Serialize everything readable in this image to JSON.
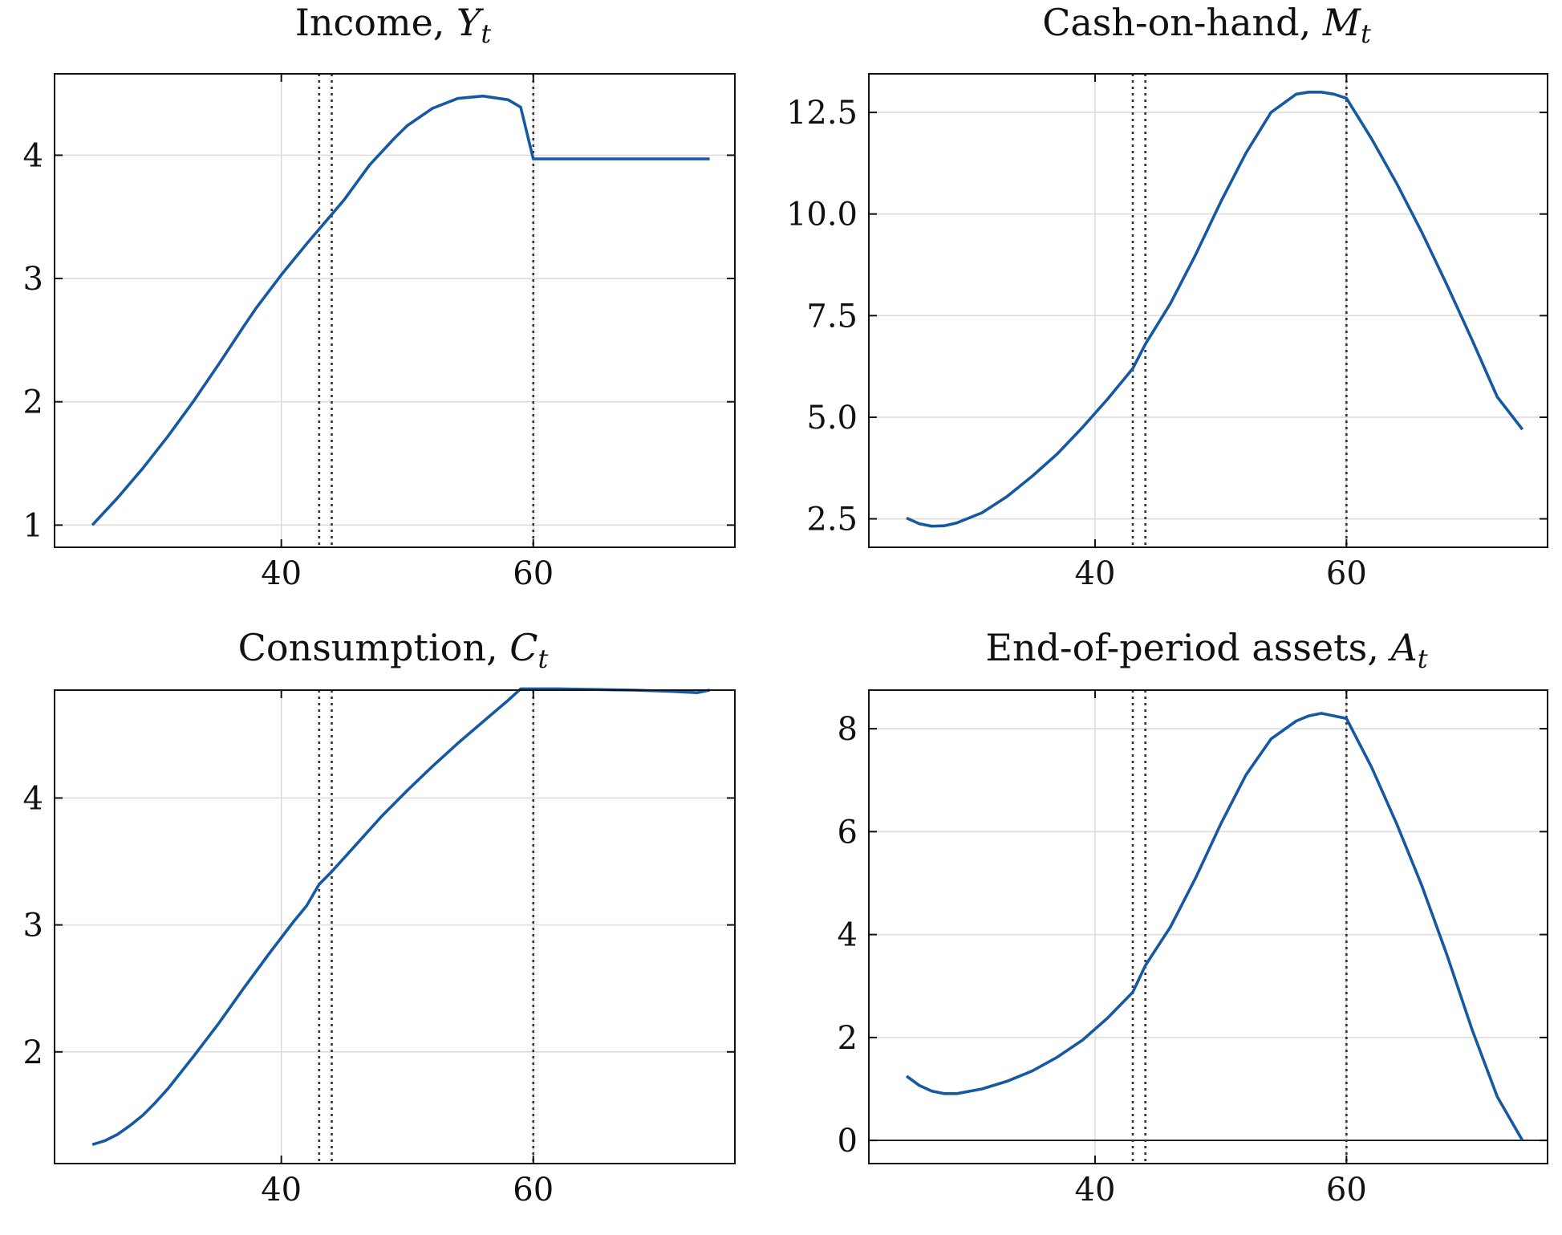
{
  "figure": {
    "line_color": "#1559a3",
    "vline_color": "#333333",
    "grid_color": "#dcdcdc"
  },
  "chart_data": [
    {
      "id": "income",
      "type": "line",
      "title": "Income, ",
      "title_math": "Y",
      "title_sub": "t",
      "xlim": [
        22,
        76
      ],
      "ylim": [
        0.82,
        4.66
      ],
      "xticks": [
        40,
        60
      ],
      "yticks": [
        1,
        2,
        3,
        4
      ],
      "ytick_labels": [
        "1",
        "2",
        "3",
        "4"
      ],
      "vlines": [
        43,
        44,
        60
      ],
      "zero_line": false,
      "series": [
        {
          "x": [
            25,
            27,
            29,
            31,
            33,
            35,
            37,
            38,
            40,
            42,
            44,
            45,
            47,
            49,
            50,
            52,
            54,
            56,
            58,
            59,
            60,
            62,
            65,
            68,
            71,
            74
          ],
          "y": [
            1.0,
            1.22,
            1.46,
            1.72,
            2.0,
            2.3,
            2.61,
            2.76,
            3.03,
            3.28,
            3.52,
            3.64,
            3.92,
            4.14,
            4.24,
            4.38,
            4.46,
            4.48,
            4.45,
            4.39,
            3.97,
            3.97,
            3.97,
            3.97,
            3.97,
            3.97
          ]
        }
      ]
    },
    {
      "id": "cash-on-hand",
      "type": "line",
      "title": "Cash-on-hand, ",
      "title_math": "M",
      "title_sub": "t",
      "xlim": [
        22,
        76
      ],
      "ylim": [
        1.8,
        13.45
      ],
      "xticks": [
        40,
        60
      ],
      "yticks": [
        2.5,
        5.0,
        7.5,
        10.0,
        12.5
      ],
      "ytick_labels": [
        "2.5",
        "5.0",
        "7.5",
        "10.0",
        "12.5"
      ],
      "vlines": [
        43,
        44,
        60
      ],
      "zero_line": false,
      "series": [
        {
          "x": [
            25,
            26,
            27,
            28,
            29,
            31,
            33,
            35,
            37,
            39,
            41,
            43,
            44,
            46,
            48,
            50,
            52,
            54,
            56,
            57,
            58,
            59,
            60,
            62,
            64,
            66,
            68,
            70,
            72,
            74
          ],
          "y": [
            2.52,
            2.38,
            2.32,
            2.33,
            2.4,
            2.65,
            3.05,
            3.55,
            4.1,
            4.75,
            5.45,
            6.2,
            6.8,
            7.8,
            9.0,
            10.3,
            11.5,
            12.5,
            12.95,
            13.0,
            13.0,
            12.95,
            12.85,
            11.85,
            10.75,
            9.55,
            8.25,
            6.9,
            5.5,
            4.7
          ]
        }
      ]
    },
    {
      "id": "consumption",
      "type": "line",
      "title": "Consumption, ",
      "title_math": "C",
      "title_sub": "t",
      "xlim": [
        22,
        76
      ],
      "ylim": [
        1.12,
        4.85
      ],
      "xticks": [
        40,
        60
      ],
      "yticks": [
        2,
        3,
        4
      ],
      "ytick_labels": [
        "2",
        "3",
        "4"
      ],
      "vlines": [
        43,
        44,
        60
      ],
      "zero_line": false,
      "series": [
        {
          "x": [
            25,
            26,
            27,
            28,
            29,
            30,
            31,
            33,
            35,
            37,
            39,
            41,
            42,
            43,
            44,
            46,
            48,
            50,
            52,
            54,
            56,
            58,
            59,
            60,
            62,
            65,
            68,
            71,
            73,
            74
          ],
          "y": [
            1.27,
            1.3,
            1.35,
            1.42,
            1.5,
            1.6,
            1.71,
            1.96,
            2.22,
            2.5,
            2.77,
            3.03,
            3.15,
            3.32,
            3.42,
            3.64,
            3.86,
            4.06,
            4.25,
            4.43,
            4.6,
            4.77,
            4.86,
            4.86,
            4.86,
            4.855,
            4.85,
            4.84,
            4.83,
            4.85
          ]
        }
      ]
    },
    {
      "id": "assets",
      "type": "line",
      "title": "End-of-period assets, ",
      "title_math": "A",
      "title_sub": "t",
      "xlim": [
        22,
        76
      ],
      "ylim": [
        -0.45,
        8.75
      ],
      "xticks": [
        40,
        60
      ],
      "yticks": [
        0,
        2,
        4,
        6,
        8
      ],
      "ytick_labels": [
        "0",
        "2",
        "4",
        "6",
        "8"
      ],
      "vlines": [
        43,
        44,
        60
      ],
      "zero_line": true,
      "series": [
        {
          "x": [
            25,
            26,
            27,
            28,
            29,
            31,
            33,
            35,
            37,
            39,
            41,
            43,
            44,
            46,
            48,
            50,
            52,
            54,
            56,
            57,
            58,
            59,
            60,
            62,
            64,
            66,
            68,
            70,
            72,
            74
          ],
          "y": [
            1.25,
            1.07,
            0.96,
            0.91,
            0.91,
            1.0,
            1.15,
            1.35,
            1.62,
            1.95,
            2.38,
            2.88,
            3.4,
            4.15,
            5.1,
            6.15,
            7.1,
            7.8,
            8.15,
            8.25,
            8.3,
            8.25,
            8.2,
            7.25,
            6.15,
            4.95,
            3.6,
            2.15,
            0.85,
            0.0
          ]
        }
      ]
    }
  ]
}
